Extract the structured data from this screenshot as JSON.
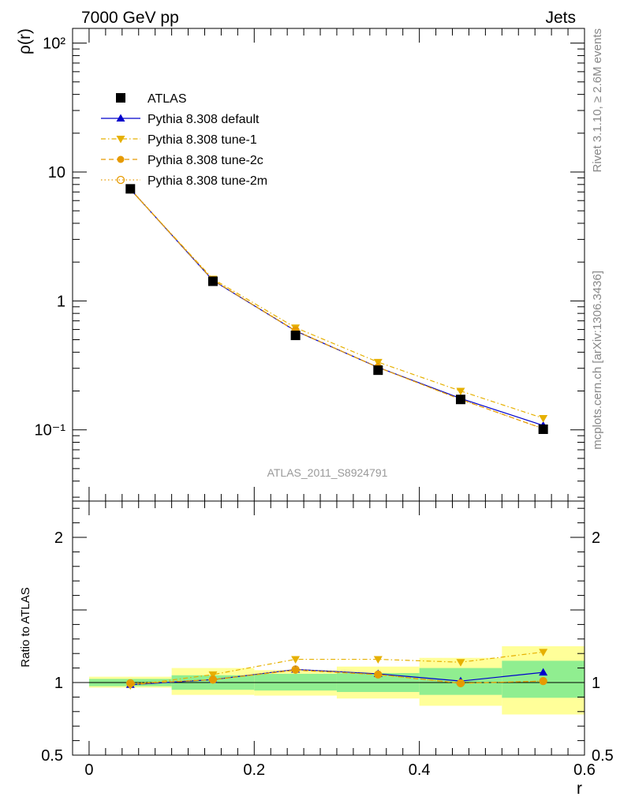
{
  "header": {
    "left": "7000 GeV pp",
    "right": "Jets"
  },
  "side_labels": {
    "rivet": "Rivet 3.1.10, ≥ 2.6M events",
    "mcplots": "mcplots.cern.ch [arXiv:1306.3436]"
  },
  "chart_data": [
    {
      "type": "line",
      "panel": "main",
      "ylabel": "ρ(r)",
      "yscale": "log",
      "xlim": [
        -0.02,
        0.6
      ],
      "ylim": [
        0.028,
        130
      ],
      "y_tick_labels": [
        "10⁻¹",
        "1",
        "10",
        "10²"
      ],
      "analysis_label": "ATLAS_2011_S8924791",
      "legend_position": "top-left",
      "series": [
        {
          "name": "ATLAS",
          "style": "data",
          "color": "#000000",
          "x": [
            0.05,
            0.15,
            0.25,
            0.35,
            0.45,
            0.55
          ],
          "values": [
            7.4,
            1.42,
            0.54,
            0.29,
            0.172,
            0.101
          ]
        },
        {
          "name": "Pythia 8.308 default",
          "style": "solid-triangle",
          "color": "#0000cc",
          "x": [
            0.05,
            0.15,
            0.25,
            0.35,
            0.45,
            0.55
          ],
          "values": [
            7.35,
            1.44,
            0.585,
            0.305,
            0.175,
            0.108
          ]
        },
        {
          "name": "Pythia 8.308 tune-1",
          "style": "dashdot-triangle-down",
          "color": "#e6b000",
          "x": [
            0.05,
            0.15,
            0.25,
            0.35,
            0.45,
            0.55
          ],
          "values": [
            7.3,
            1.48,
            0.62,
            0.335,
            0.2,
            0.123
          ]
        },
        {
          "name": "Pythia 8.308 tune-2c",
          "style": "dashed-circle",
          "color": "#e69a00",
          "x": [
            0.05,
            0.15,
            0.25,
            0.35,
            0.45,
            0.55
          ],
          "values": [
            7.35,
            1.45,
            0.585,
            0.305,
            0.172,
            0.102
          ]
        },
        {
          "name": "Pythia 8.308 tune-2m",
          "style": "dotted-open-circle",
          "color": "#e69a00",
          "x": [
            0.05,
            0.15,
            0.25,
            0.35,
            0.45,
            0.55
          ],
          "values": [
            7.4,
            1.45,
            0.59,
            0.305,
            0.172,
            0.102
          ]
        }
      ]
    },
    {
      "type": "line",
      "panel": "ratio",
      "ylabel": "Ratio to ATLAS",
      "xlabel": "r",
      "xlim": [
        -0.02,
        0.6
      ],
      "ylim": [
        0.5,
        2.25
      ],
      "x_ticks": [
        0,
        0.2,
        0.4,
        0.6
      ],
      "x_tick_labels": [
        "0",
        "0.2",
        "0.4",
        "0.6"
      ],
      "y_ticks": [
        0.5,
        1,
        2
      ],
      "y_tick_labels": [
        "0.5",
        "1",
        "2"
      ],
      "bands": {
        "bins": [
          [
            0.0,
            0.1
          ],
          [
            0.1,
            0.2
          ],
          [
            0.2,
            0.3
          ],
          [
            0.3,
            0.4
          ],
          [
            0.4,
            0.5
          ],
          [
            0.5,
            0.6
          ]
        ],
        "inner": [
          [
            0.975,
            1.025
          ],
          [
            0.95,
            1.05
          ],
          [
            0.945,
            1.06
          ],
          [
            0.935,
            1.065
          ],
          [
            0.915,
            1.1
          ],
          [
            0.895,
            1.15
          ]
        ],
        "outer": [
          [
            0.965,
            1.04
          ],
          [
            0.915,
            1.1
          ],
          [
            0.91,
            1.085
          ],
          [
            0.89,
            1.11
          ],
          [
            0.84,
            1.17
          ],
          [
            0.78,
            1.25
          ]
        ],
        "inner_color": "#90ee90",
        "outer_color": "#ffff99"
      },
      "series": [
        {
          "name": "Pythia 8.308 default",
          "style": "solid-triangle",
          "color": "#0000cc",
          "x": [
            0.05,
            0.15,
            0.25,
            0.35,
            0.45,
            0.55
          ],
          "values": [
            0.985,
            1.02,
            1.09,
            1.06,
            1.01,
            1.07
          ]
        },
        {
          "name": "Pythia 8.308 tune-1",
          "style": "dashdot-triangle-down",
          "color": "#e6b000",
          "x": [
            0.05,
            0.15,
            0.25,
            0.35,
            0.45,
            0.55
          ],
          "values": [
            0.98,
            1.055,
            1.16,
            1.16,
            1.14,
            1.21
          ]
        },
        {
          "name": "Pythia 8.308 tune-2c",
          "style": "dashed-circle",
          "color": "#e69a00",
          "x": [
            0.05,
            0.15,
            0.25,
            0.35,
            0.45,
            0.55
          ],
          "values": [
            0.99,
            1.02,
            1.085,
            1.055,
            0.995,
            1.01
          ]
        },
        {
          "name": "Pythia 8.308 tune-2m",
          "style": "dotted-open-circle",
          "color": "#e69a00",
          "x": [
            0.05,
            0.15,
            0.25,
            0.35,
            0.45,
            0.55
          ],
          "values": [
            0.995,
            1.02,
            1.09,
            1.055,
            0.995,
            1.01
          ]
        }
      ]
    }
  ]
}
